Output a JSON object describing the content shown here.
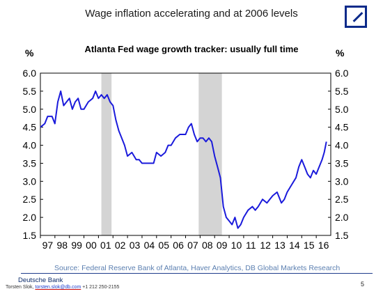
{
  "header": {
    "title": "Wage inflation accelerating and at 2006 levels",
    "logo_icon": "deutsche-bank-slash-square-icon",
    "logo_color": "#0a2a8a"
  },
  "chart_data": {
    "type": "line",
    "title": "Atlanta Fed wage growth tracker: usually full time",
    "ylabel_left": "%",
    "ylabel_right": "%",
    "ylim": [
      1.5,
      6.0
    ],
    "yticks": [
      "1.5",
      "2.0",
      "2.5",
      "3.0",
      "3.5",
      "4.0",
      "4.5",
      "5.0",
      "5.5",
      "6.0"
    ],
    "xlim": [
      1997.0,
      2017.0
    ],
    "x_tick_labels": [
      "97",
      "98",
      "99",
      "00",
      "01",
      "02",
      "03",
      "04",
      "05",
      "06",
      "07",
      "08",
      "09",
      "10",
      "11",
      "12",
      "13",
      "14",
      "15",
      "16"
    ],
    "grid": false,
    "line_color": "#1a1adb",
    "shading_color": "#d4d4d4",
    "recessions": [
      [
        2001.2,
        2001.9
      ],
      [
        2007.9,
        2009.5
      ]
    ],
    "series": [
      {
        "x": [
          1997.0,
          1997.3,
          1997.5,
          1997.8,
          1998.0,
          1998.2,
          1998.4,
          1998.6,
          1998.8,
          1999.0,
          1999.2,
          1999.4,
          1999.6,
          1999.8,
          2000.0,
          2000.3,
          2000.6,
          2000.8,
          2001.0,
          2001.2,
          2001.4,
          2001.6,
          2001.8,
          2002.0,
          2002.2,
          2002.4,
          2002.6,
          2002.8,
          2003.0,
          2003.3,
          2003.6,
          2003.8,
          2004.0,
          2004.3,
          2004.6,
          2004.8,
          2005.0,
          2005.3,
          2005.6,
          2005.8,
          2006.0,
          2006.3,
          2006.6,
          2006.8,
          2007.0,
          2007.2,
          2007.4,
          2007.6,
          2007.8,
          2008.0,
          2008.2,
          2008.4,
          2008.6,
          2008.8,
          2009.0,
          2009.2,
          2009.4,
          2009.6,
          2009.8,
          2010.0,
          2010.2,
          2010.4,
          2010.6,
          2010.8,
          2011.0,
          2011.3,
          2011.6,
          2011.8,
          2012.0,
          2012.3,
          2012.6,
          2012.8,
          2013.0,
          2013.3,
          2013.6,
          2013.8,
          2014.0,
          2014.3,
          2014.6,
          2014.8,
          2015.0,
          2015.2,
          2015.4,
          2015.6,
          2015.8,
          2016.0,
          2016.2,
          2016.4,
          2016.55,
          2016.7
        ],
        "values": [
          4.5,
          4.6,
          4.8,
          4.8,
          4.6,
          5.2,
          5.5,
          5.1,
          5.2,
          5.3,
          5.0,
          5.2,
          5.3,
          5.0,
          5.0,
          5.2,
          5.3,
          5.5,
          5.3,
          5.4,
          5.3,
          5.4,
          5.2,
          5.1,
          4.7,
          4.4,
          4.2,
          4.0,
          3.7,
          3.8,
          3.6,
          3.6,
          3.5,
          3.5,
          3.5,
          3.5,
          3.8,
          3.7,
          3.8,
          4.0,
          4.0,
          4.2,
          4.3,
          4.3,
          4.3,
          4.5,
          4.6,
          4.3,
          4.1,
          4.2,
          4.2,
          4.1,
          4.2,
          4.1,
          3.7,
          3.4,
          3.1,
          2.3,
          2.0,
          1.9,
          1.8,
          2.0,
          1.7,
          1.8,
          2.0,
          2.2,
          2.3,
          2.2,
          2.3,
          2.5,
          2.4,
          2.5,
          2.6,
          2.7,
          2.4,
          2.5,
          2.7,
          2.9,
          3.1,
          3.4,
          3.6,
          3.4,
          3.2,
          3.1,
          3.3,
          3.2,
          3.4,
          3.6,
          3.8,
          4.1
        ]
      }
    ]
  },
  "source": "Source: Federal Reserve Bank of Atlanta, Haver Analytics, DB Global Markets Research",
  "footer": {
    "company": "Deutsche Bank",
    "contact_name": "Torsten Slok,",
    "contact_email": "torsten.slok@db.com",
    "contact_phone": "+1 212 250-2155",
    "page_number": "5"
  }
}
